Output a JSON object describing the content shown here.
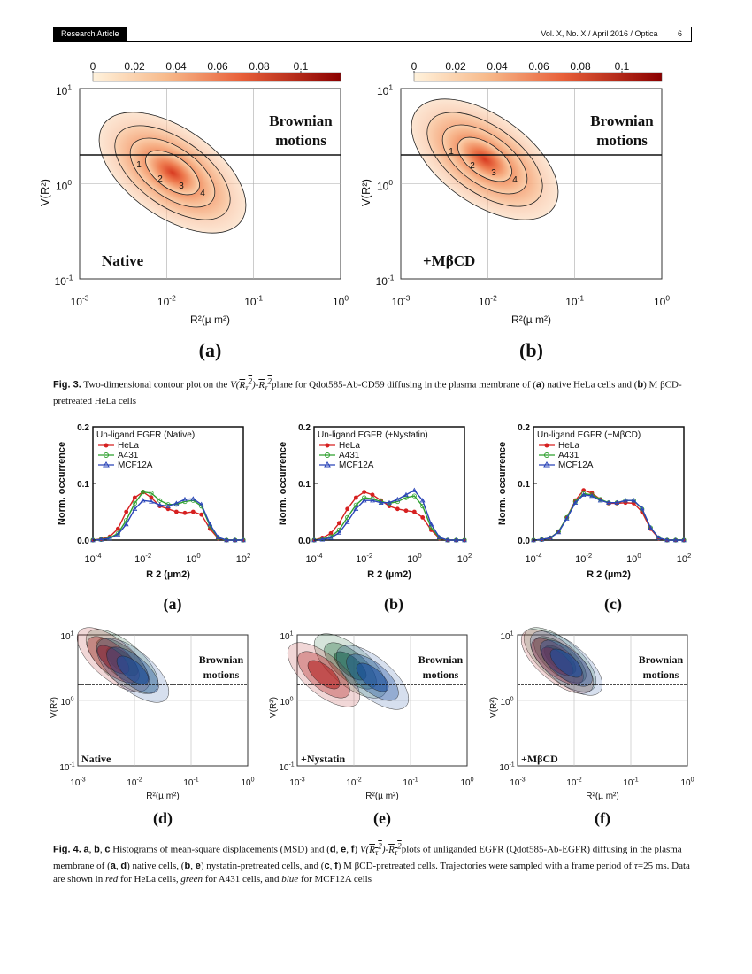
{
  "header": {
    "tag": "Research Article",
    "journal": "Vol. X, No. X / April 2016 / Optica",
    "page": "6"
  },
  "fig3": {
    "colorbar_ticks": [
      "0",
      "0.02",
      "0.04",
      "0.06",
      "0.08",
      "0.1"
    ],
    "panels": [
      {
        "letter": "(a)",
        "condition": "Native",
        "region": "Brownian",
        "region2": "motions",
        "contour_labels": [
          "1",
          "2",
          "3",
          "4"
        ]
      },
      {
        "letter": "(b)",
        "condition": "+MβCD",
        "region": "Brownian",
        "region2": "motions",
        "contour_labels": [
          "1",
          "2",
          "3",
          "4"
        ]
      }
    ],
    "x_ticks": [
      "10-3",
      "10-2",
      "10-1",
      "100"
    ],
    "y_ticks": [
      "101",
      "100",
      "10-1"
    ],
    "xlabel": "R²(µ m²)",
    "ylabel": "V(R²)",
    "caption_label": "Fig. 3.",
    "caption_pre": " Two-dimensional contour plot on the ",
    "caption_mid": "plane for Qdot585-Ab-CD59 diffusing in the plasma membrane of (",
    "caption_a": "a",
    "caption_mid2": ") native HeLa cells and (",
    "caption_b": "b",
    "caption_end": ") M βCD-pretreated HeLa cells"
  },
  "fig4": {
    "chart_data": [
      {
        "type": "line",
        "title": "Un-ligand EGFR (Native)",
        "xlabel": "R 2 (µm2)",
        "ylabel": "Norm. occurrence",
        "ylim": [
          0,
          0.2
        ],
        "x_log10": [
          -4,
          -3.67,
          -3.33,
          -3,
          -2.67,
          -2.33,
          -2,
          -1.67,
          -1.33,
          -1,
          -0.67,
          -0.33,
          0,
          0.33,
          0.67,
          1,
          1.33,
          1.67,
          2
        ],
        "series": [
          {
            "name": "HeLa",
            "color": "#d62020",
            "values": [
              0,
              0.002,
              0.006,
              0.02,
              0.05,
              0.075,
              0.085,
              0.075,
              0.06,
              0.055,
              0.05,
              0.048,
              0.05,
              0.045,
              0.02,
              0.003,
              0,
              0,
              0
            ]
          },
          {
            "name": "A431",
            "color": "#2ea02e",
            "values": [
              0,
              0.001,
              0.004,
              0.012,
              0.035,
              0.065,
              0.085,
              0.083,
              0.07,
              0.063,
              0.063,
              0.068,
              0.07,
              0.06,
              0.025,
              0.004,
              0,
              0,
              0
            ]
          },
          {
            "name": "MCF12A",
            "color": "#2a44b8",
            "values": [
              0,
              0.001,
              0.003,
              0.01,
              0.028,
              0.055,
              0.07,
              0.068,
              0.062,
              0.06,
              0.065,
              0.072,
              0.073,
              0.063,
              0.028,
              0.005,
              0,
              0,
              0
            ]
          }
        ]
      },
      {
        "type": "line",
        "title": "Un-ligand EGFR (+Nystatin)",
        "xlabel": "R 2 (µm2)",
        "ylabel": "Norm. occurrence",
        "ylim": [
          0,
          0.2
        ],
        "x_log10": [
          -4,
          -3.67,
          -3.33,
          -3,
          -2.67,
          -2.33,
          -2,
          -1.67,
          -1.33,
          -1,
          -0.67,
          -0.33,
          0,
          0.33,
          0.67,
          1,
          1.33,
          1.67,
          2
        ],
        "series": [
          {
            "name": "HeLa",
            "color": "#d62020",
            "values": [
              0,
              0.004,
              0.012,
              0.03,
              0.055,
              0.075,
              0.085,
              0.08,
              0.07,
              0.06,
              0.055,
              0.052,
              0.05,
              0.04,
              0.018,
              0.003,
              0,
              0,
              0
            ]
          },
          {
            "name": "A431",
            "color": "#2ea02e",
            "values": [
              0,
              0.002,
              0.006,
              0.018,
              0.04,
              0.062,
              0.075,
              0.073,
              0.068,
              0.065,
              0.068,
              0.075,
              0.078,
              0.06,
              0.022,
              0.004,
              0,
              0,
              0
            ]
          },
          {
            "name": "MCF12A",
            "color": "#2a44b8",
            "values": [
              0,
              0.001,
              0.004,
              0.013,
              0.032,
              0.055,
              0.07,
              0.07,
              0.066,
              0.066,
              0.072,
              0.08,
              0.088,
              0.07,
              0.028,
              0.005,
              0,
              0,
              0
            ]
          }
        ]
      },
      {
        "type": "line",
        "title": "Un-ligand EGFR (+MβCD)",
        "xlabel": "R 2 (µm2)",
        "ylabel": "Norm. occurrence",
        "ylim": [
          0,
          0.2
        ],
        "x_log10": [
          -4,
          -3.67,
          -3.33,
          -3,
          -2.67,
          -2.33,
          -2,
          -1.67,
          -1.33,
          -1,
          -0.67,
          -0.33,
          0,
          0.33,
          0.67,
          1,
          1.33,
          1.67,
          2
        ],
        "series": [
          {
            "name": "HeLa",
            "color": "#d62020",
            "values": [
              0,
              0.001,
              0.004,
              0.015,
              0.04,
              0.07,
              0.088,
              0.083,
              0.072,
              0.065,
              0.065,
              0.066,
              0.065,
              0.05,
              0.02,
              0.003,
              0,
              0,
              0
            ]
          },
          {
            "name": "A431",
            "color": "#2ea02e",
            "values": [
              0,
              0.001,
              0.004,
              0.015,
              0.04,
              0.068,
              0.082,
              0.08,
              0.072,
              0.066,
              0.066,
              0.07,
              0.07,
              0.055,
              0.022,
              0.004,
              0,
              0,
              0
            ]
          },
          {
            "name": "MCF12A",
            "color": "#2a44b8",
            "values": [
              0,
              0.001,
              0.004,
              0.014,
              0.038,
              0.066,
              0.08,
              0.078,
              0.07,
              0.066,
              0.066,
              0.07,
              0.07,
              0.056,
              0.022,
              0.004,
              0,
              0,
              0
            ]
          }
        ]
      }
    ],
    "hist_x_ticks": [
      "10-4",
      "10-2",
      "100",
      "102"
    ],
    "hist_y_ticks": [
      "0.0",
      "0.1",
      "0.2"
    ],
    "hist_letters": [
      "(a)",
      "(b)",
      "(c)"
    ],
    "contour_letters": [
      "(d)",
      "(e)",
      "(f)"
    ],
    "contour_conditions": [
      "Native",
      "+Nystatin",
      "+MβCD"
    ],
    "caption_label": "Fig. 4.",
    "caption_parts": {
      "a": "a",
      "b": "b",
      "c": "c",
      "d": "d",
      "e": "e",
      "f": "f",
      "t1": " Histograms of mean-square displacements (MSD) and (",
      "t2": ") ",
      "t3": "plots of unliganded EGFR (Qdot585-Ab-EGFR) diffusing in the plasma membrane of (",
      "t4": ") native cells, (",
      "t5": ") nystatin-pretreated cells, and (",
      "t6": ") M βCD-pretreated cells. Trajectories were sampled with a frame period of ",
      "t7": "=25 ms. Data are shown in ",
      "red": "red",
      "t8": " for HeLa cells, ",
      "green": "green",
      "t9": " for A431 cells, and ",
      "blue": "blue",
      "t10": " for MCF12A cells"
    }
  }
}
